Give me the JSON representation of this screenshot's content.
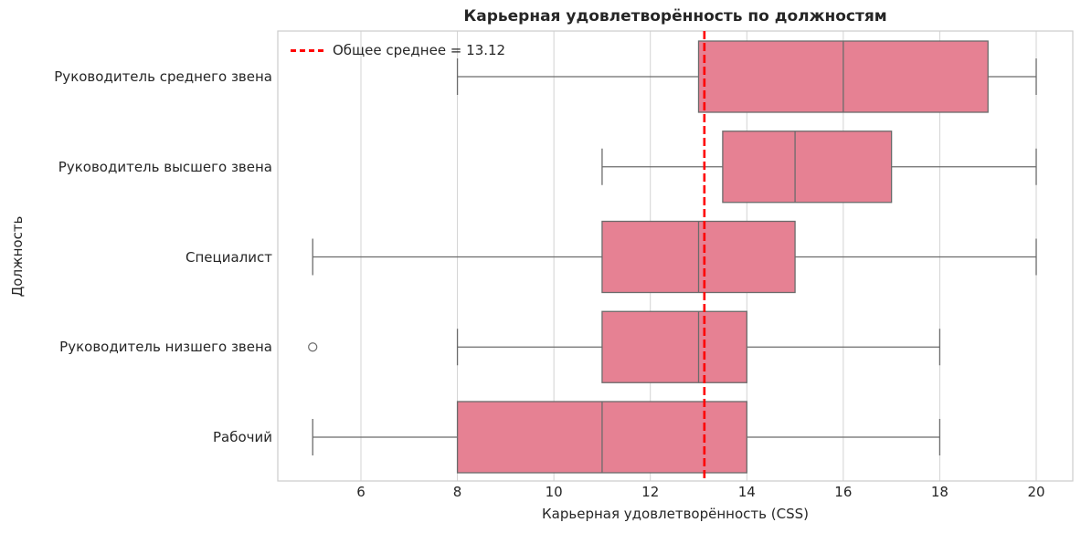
{
  "chart_data": {
    "type": "boxplot",
    "orientation": "horizontal",
    "title": "Карьерная удовлетворённость по должностям",
    "xlabel": "Карьерная удовлетворённость (CSS)",
    "ylabel": "Должность",
    "xlim": [
      4.28,
      20.76
    ],
    "xticks": [
      6,
      8,
      10,
      12,
      14,
      16,
      18,
      20
    ],
    "grid": "x",
    "categories": [
      "Руководитель среднего звена",
      "Руководитель высшего звена",
      "Специалист",
      "Руководитель низшего звена",
      "Рабочий"
    ],
    "boxes": [
      {
        "category": "Руководитель среднего звена",
        "whisker_low": 8,
        "q1": 13,
        "median": 16,
        "q3": 19,
        "whisker_high": 20,
        "outliers": []
      },
      {
        "category": "Руководитель высшего звена",
        "whisker_low": 11,
        "q1": 13.5,
        "median": 15,
        "q3": 17,
        "whisker_high": 20,
        "outliers": []
      },
      {
        "category": "Специалист",
        "whisker_low": 5,
        "q1": 11,
        "median": 13,
        "q3": 15,
        "whisker_high": 20,
        "outliers": []
      },
      {
        "category": "Руководитель низшего звена",
        "whisker_low": 8,
        "q1": 11,
        "median": 13,
        "q3": 14,
        "whisker_high": 18,
        "outliers": [
          5
        ]
      },
      {
        "category": "Рабочий",
        "whisker_low": 5,
        "q1": 8,
        "median": 11,
        "q3": 14,
        "whisker_high": 18,
        "outliers": []
      }
    ],
    "reference_line": {
      "value": 13.12,
      "label": "Общее среднее = 13.12",
      "style": "dashed",
      "color": "#ff0000"
    },
    "legend": {
      "entries": [
        "Общее среднее = 13.12"
      ],
      "position": "upper left"
    },
    "colors": {
      "box_fill": "#e68193",
      "box_edge": "#6b6b6b",
      "grid": "#d3d3d3",
      "mean_line": "#ff0000"
    }
  }
}
